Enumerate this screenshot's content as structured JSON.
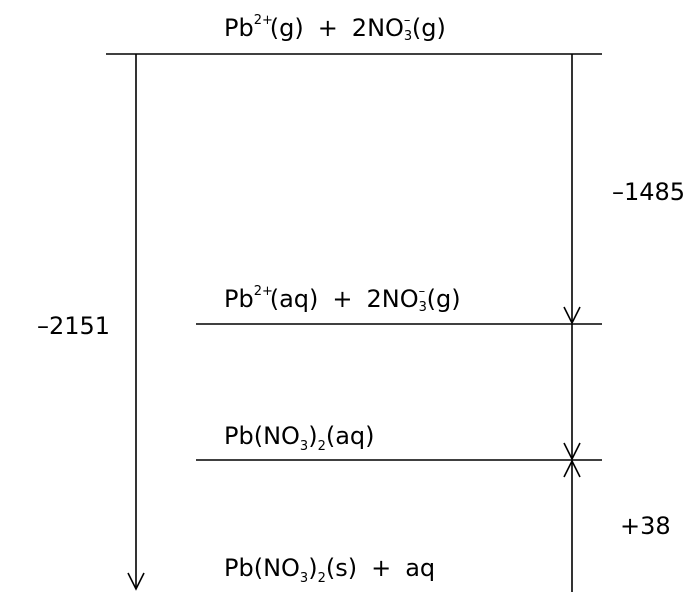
{
  "levels": [
    {
      "id": "gaseous-ions",
      "parts": {
        "cation": "Pb",
        "cation_charge": "2+",
        "cation_state": "(g)",
        "plus": "+",
        "anion_coef": "2NO",
        "anion_sub": "3",
        "anion_charge": "–",
        "anion_state": "(g)"
      }
    },
    {
      "id": "aqueous-cation",
      "parts": {
        "cation": "Pb",
        "cation_charge": "2+",
        "cation_state": "(aq)",
        "plus": "+",
        "anion_coef": "2NO",
        "anion_sub": "3",
        "anion_charge": "–",
        "anion_state": "(g)"
      }
    },
    {
      "id": "aqueous-salt",
      "parts": {
        "open": "Pb(NO",
        "inner_sub": "3",
        "close": ")",
        "outer_sub": "2",
        "state": "(aq)"
      }
    },
    {
      "id": "solid-salt",
      "parts": {
        "open": "Pb(NO",
        "inner_sub": "3",
        "close": ")",
        "outer_sub": "2",
        "state": "(s)",
        "plus": "+",
        "extra": "aq"
      }
    }
  ],
  "energies": {
    "lattice": "–2151",
    "hydration_cation": "–1485",
    "solution": "+38"
  },
  "colors": {
    "ink": "#000000",
    "background": "#ffffff"
  }
}
